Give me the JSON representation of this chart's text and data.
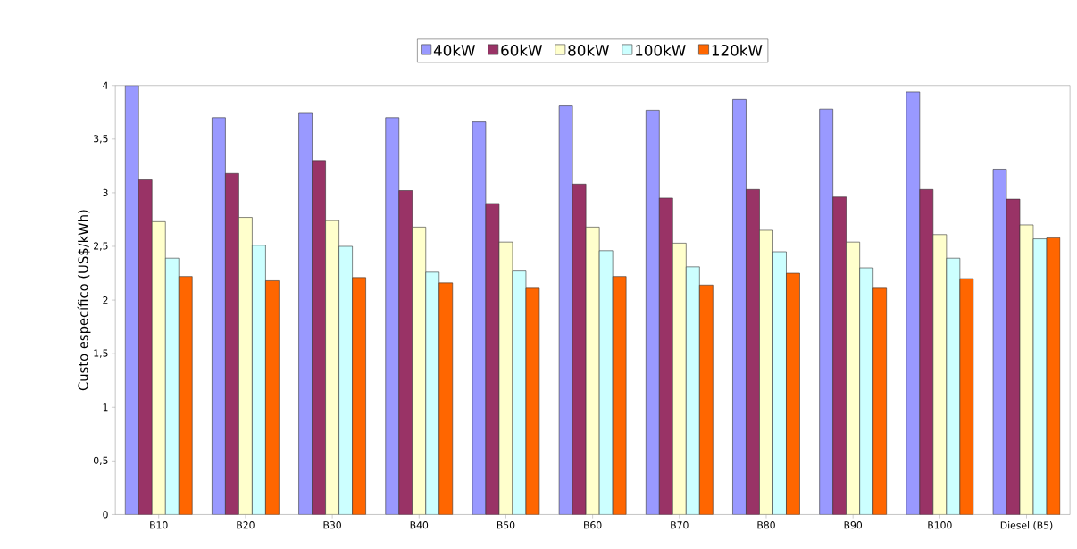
{
  "chart_data": {
    "type": "bar",
    "ylabel": "Custo específico (US$/kWh)",
    "categories": [
      "B10",
      "B20",
      "B30",
      "B40",
      "B50",
      "B60",
      "B70",
      "B80",
      "B90",
      "B100",
      "Diesel (B5)"
    ],
    "series": [
      {
        "name": "40kW",
        "color": "#9999ff",
        "values": [
          4.0,
          3.7,
          3.74,
          3.7,
          3.66,
          3.81,
          3.77,
          3.87,
          3.78,
          3.94,
          3.22
        ]
      },
      {
        "name": "60kW",
        "color": "#993366",
        "values": [
          3.12,
          3.18,
          3.3,
          3.02,
          2.9,
          3.08,
          2.95,
          3.03,
          2.96,
          3.03,
          2.94
        ]
      },
      {
        "name": "80kW",
        "color": "#ffffcc",
        "values": [
          2.73,
          2.77,
          2.74,
          2.68,
          2.54,
          2.68,
          2.53,
          2.65,
          2.54,
          2.61,
          2.7
        ]
      },
      {
        "name": "100kW",
        "color": "#ccffff",
        "values": [
          2.39,
          2.51,
          2.5,
          2.26,
          2.27,
          2.46,
          2.31,
          2.45,
          2.3,
          2.39,
          2.57
        ]
      },
      {
        "name": "120kW",
        "color": "#ff6600",
        "values": [
          2.22,
          2.18,
          2.21,
          2.16,
          2.11,
          2.22,
          2.14,
          2.25,
          2.11,
          2.2,
          2.58
        ]
      }
    ],
    "ylim": [
      0,
      4
    ],
    "yticks": [
      0,
      {
        "value": 0.5,
        "label": "0,5"
      },
      1,
      {
        "value": 1.5,
        "label": "1,5"
      },
      2,
      {
        "value": 2.5,
        "label": "2,5"
      },
      3,
      {
        "value": 3.5,
        "label": "3,5"
      },
      4
    ],
    "grid": false,
    "legend": "top"
  }
}
